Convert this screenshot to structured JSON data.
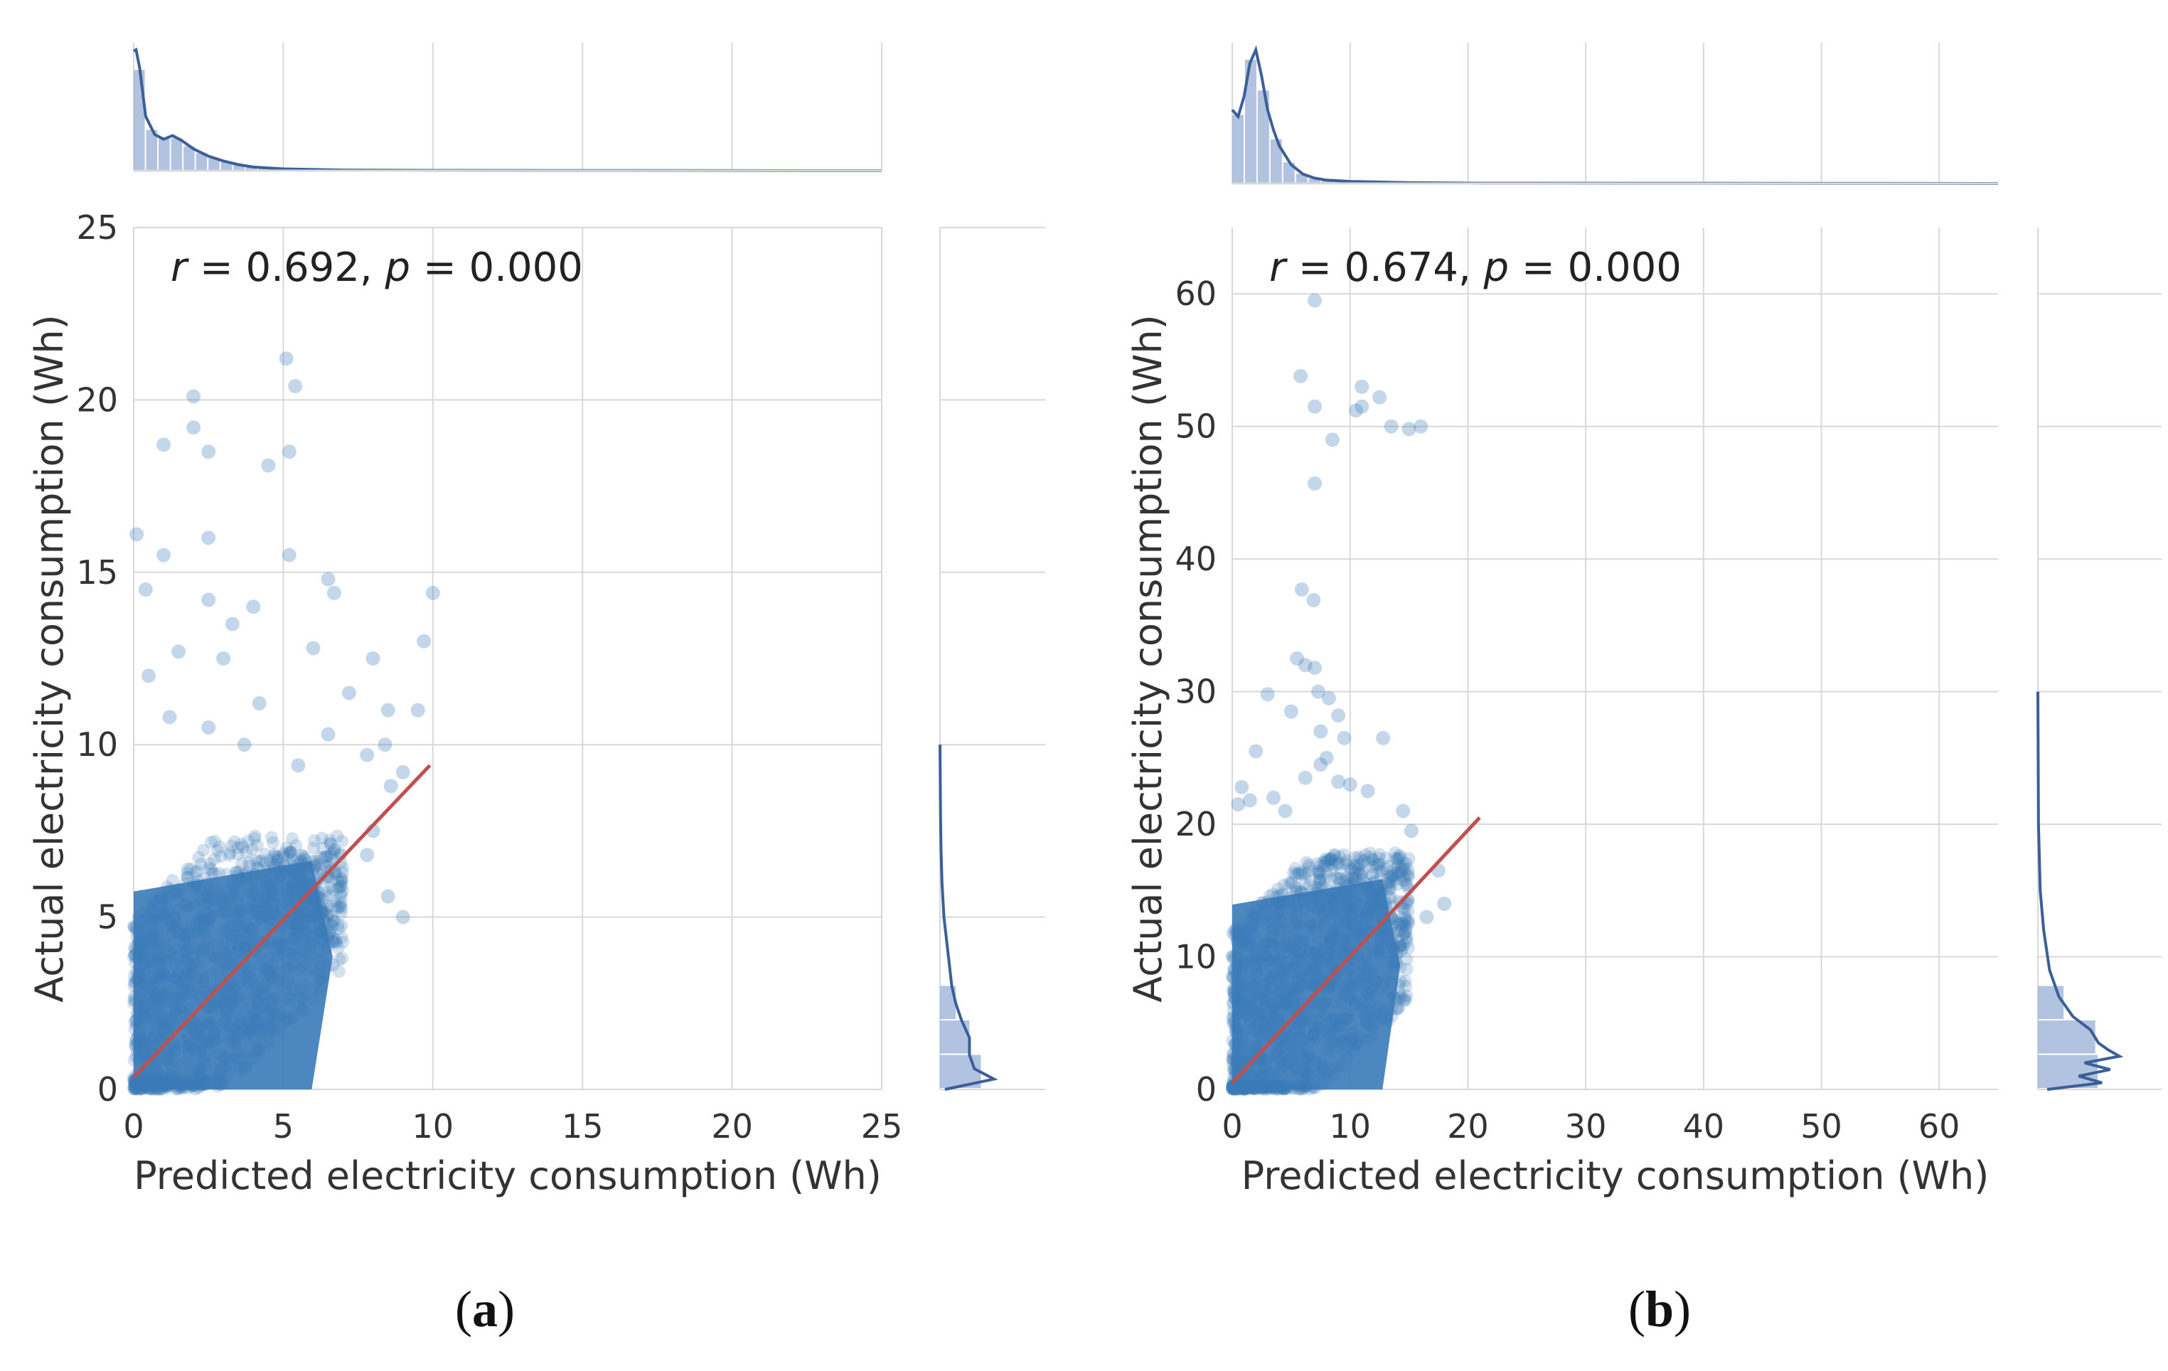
{
  "colors": {
    "point": "#3a7ab8",
    "fit_line": "#c0504d",
    "grid": "#d8d8d8",
    "hist_fill": "#9db4d8",
    "kde_line": "#3b5f97"
  },
  "captions": {
    "a": {
      "open": "(",
      "letter": "a",
      "close": ")"
    },
    "b": {
      "open": "(",
      "letter": "b",
      "close": ")"
    }
  },
  "chart_data": [
    {
      "type": "scatter",
      "panel": "a",
      "annotation": {
        "r_symbol": "r",
        "r_text": " = 0.692, ",
        "p_symbol": "p",
        "p_text": " = 0.000"
      },
      "xlabel": "Predicted electricity consumption (Wh)",
      "ylabel": "Actual electricity consumption (Wh)",
      "xlim": [
        0,
        25
      ],
      "ylim": [
        0,
        25
      ],
      "xticks": [
        0,
        5,
        10,
        15,
        20,
        25
      ],
      "yticks": [
        0,
        5,
        10,
        15,
        20,
        25
      ],
      "regression_line": {
        "x": [
          0,
          9.9
        ],
        "y": [
          0.35,
          9.4
        ]
      },
      "dense_cluster": {
        "x_max": 7.0,
        "y_max": 7.0,
        "n": 1400
      },
      "outliers": [
        [
          5.1,
          21.2
        ],
        [
          5.4,
          20.4
        ],
        [
          2.0,
          20.1
        ],
        [
          2.0,
          19.2
        ],
        [
          1.0,
          18.7
        ],
        [
          2.5,
          18.5
        ],
        [
          4.5,
          18.1
        ],
        [
          5.2,
          18.5
        ],
        [
          2.5,
          16.0
        ],
        [
          0.1,
          16.1
        ],
        [
          1.0,
          15.5
        ],
        [
          5.2,
          15.5
        ],
        [
          6.5,
          14.8
        ],
        [
          6.7,
          14.4
        ],
        [
          10.0,
          14.4
        ],
        [
          0.4,
          14.5
        ],
        [
          2.5,
          14.2
        ],
        [
          4.0,
          14.0
        ],
        [
          9.7,
          13.0
        ],
        [
          8.0,
          12.5
        ],
        [
          6.0,
          12.8
        ],
        [
          3.0,
          12.5
        ],
        [
          1.5,
          12.7
        ],
        [
          8.5,
          11.0
        ],
        [
          9.5,
          11.0
        ],
        [
          7.2,
          11.5
        ],
        [
          4.2,
          11.2
        ],
        [
          2.5,
          10.5
        ],
        [
          6.5,
          10.3
        ],
        [
          8.4,
          10.0
        ],
        [
          9.0,
          9.2
        ],
        [
          7.8,
          9.7
        ],
        [
          5.5,
          9.4
        ],
        [
          3.7,
          10.0
        ],
        [
          1.2,
          10.8
        ],
        [
          8.6,
          8.8
        ],
        [
          9.0,
          5.0
        ],
        [
          8.5,
          5.6
        ],
        [
          7.8,
          6.8
        ],
        [
          8.0,
          7.5
        ],
        [
          0.5,
          12.0
        ],
        [
          3.3,
          13.5
        ]
      ],
      "marginal_x": {
        "kde": [
          [
            0,
            0.99
          ],
          [
            0.08,
            1.0
          ],
          [
            0.2,
            0.85
          ],
          [
            0.4,
            0.45
          ],
          [
            0.7,
            0.3
          ],
          [
            1.0,
            0.26
          ],
          [
            1.3,
            0.29
          ],
          [
            1.6,
            0.25
          ],
          [
            2.0,
            0.18
          ],
          [
            2.5,
            0.12
          ],
          [
            3.0,
            0.08
          ],
          [
            3.5,
            0.05
          ],
          [
            4.0,
            0.03
          ],
          [
            5.0,
            0.015
          ],
          [
            7.0,
            0.005
          ],
          [
            10.0,
            0.002
          ],
          [
            25.0,
            0.0
          ]
        ]
      },
      "marginal_y": {
        "kde": [
          [
            0,
            0.05
          ],
          [
            0.3,
            0.55
          ],
          [
            0.6,
            0.35
          ],
          [
            1.0,
            0.3
          ],
          [
            1.5,
            0.3
          ],
          [
            2.0,
            0.22
          ],
          [
            2.5,
            0.16
          ],
          [
            3.0,
            0.12
          ],
          [
            4.0,
            0.08
          ],
          [
            5.0,
            0.04
          ],
          [
            6.0,
            0.02
          ],
          [
            7.0,
            0.01
          ],
          [
            8.0,
            0.005
          ],
          [
            10.0,
            0.0
          ]
        ]
      }
    },
    {
      "type": "scatter",
      "panel": "b",
      "annotation": {
        "r_symbol": "r",
        "r_text": " = 0.674, ",
        "p_symbol": "p",
        "p_text": " = 0.000"
      },
      "xlabel": "Predicted electricity consumption (Wh)",
      "ylabel": "Actual electricity consumption (Wh)",
      "xlim": [
        0,
        65
      ],
      "ylim": [
        0,
        65
      ],
      "xticks": [
        0,
        10,
        20,
        30,
        40,
        50,
        60
      ],
      "yticks": [
        0,
        10,
        20,
        30,
        40,
        50,
        60
      ],
      "regression_line": {
        "x": [
          0,
          21
        ],
        "y": [
          0.5,
          20.5
        ]
      },
      "dense_cluster": {
        "x_max": 15.0,
        "y_max": 17.0,
        "n": 1400
      },
      "outliers": [
        [
          7.0,
          59.5
        ],
        [
          5.8,
          53.8
        ],
        [
          11.0,
          53.0
        ],
        [
          12.5,
          52.2
        ],
        [
          10.5,
          51.2
        ],
        [
          11.0,
          51.5
        ],
        [
          13.5,
          50.0
        ],
        [
          15.0,
          49.8
        ],
        [
          16.0,
          50.0
        ],
        [
          7.0,
          51.5
        ],
        [
          8.5,
          49.0
        ],
        [
          7.0,
          45.7
        ],
        [
          5.9,
          37.7
        ],
        [
          6.9,
          36.9
        ],
        [
          5.5,
          32.5
        ],
        [
          6.2,
          32.0
        ],
        [
          7.0,
          31.8
        ],
        [
          7.3,
          30.0
        ],
        [
          8.2,
          29.5
        ],
        [
          9.0,
          28.2
        ],
        [
          3.0,
          29.8
        ],
        [
          5.0,
          28.5
        ],
        [
          7.5,
          27.0
        ],
        [
          9.5,
          26.5
        ],
        [
          12.8,
          26.5
        ],
        [
          8.0,
          25.0
        ],
        [
          7.5,
          24.5
        ],
        [
          2.0,
          25.5
        ],
        [
          6.2,
          23.5
        ],
        [
          9.0,
          23.2
        ],
        [
          10.0,
          23.0
        ],
        [
          11.5,
          22.5
        ],
        [
          0.8,
          22.8
        ],
        [
          1.5,
          21.8
        ],
        [
          4.5,
          21.0
        ],
        [
          14.5,
          21.0
        ],
        [
          15.2,
          19.5
        ],
        [
          17.5,
          16.5
        ],
        [
          18.0,
          14.0
        ],
        [
          16.5,
          13.0
        ],
        [
          0.5,
          21.5
        ],
        [
          3.5,
          22.0
        ]
      ],
      "marginal_x": {
        "kde": [
          [
            0,
            0.55
          ],
          [
            0.5,
            0.5
          ],
          [
            1.0,
            0.65
          ],
          [
            1.5,
            0.9
          ],
          [
            2.0,
            1.0
          ],
          [
            2.5,
            0.8
          ],
          [
            3.0,
            0.55
          ],
          [
            3.5,
            0.4
          ],
          [
            4.0,
            0.28
          ],
          [
            5.0,
            0.14
          ],
          [
            6.0,
            0.07
          ],
          [
            7.0,
            0.04
          ],
          [
            8.0,
            0.025
          ],
          [
            10.0,
            0.015
          ],
          [
            15.0,
            0.006
          ],
          [
            21.0,
            0.002
          ],
          [
            65.0,
            0.0
          ]
        ]
      },
      "marginal_y": {
        "kde": [
          [
            0,
            0.08
          ],
          [
            0.5,
            0.55
          ],
          [
            1.0,
            0.35
          ],
          [
            1.5,
            0.62
          ],
          [
            2.0,
            0.4
          ],
          [
            2.5,
            0.7
          ],
          [
            3.0,
            0.6
          ],
          [
            3.5,
            0.52
          ],
          [
            4.5,
            0.45
          ],
          [
            5.5,
            0.3
          ],
          [
            7.0,
            0.18
          ],
          [
            9.0,
            0.1
          ],
          [
            12.0,
            0.05
          ],
          [
            15.0,
            0.02
          ],
          [
            20.0,
            0.005
          ],
          [
            30.0,
            0.0
          ]
        ]
      }
    }
  ]
}
